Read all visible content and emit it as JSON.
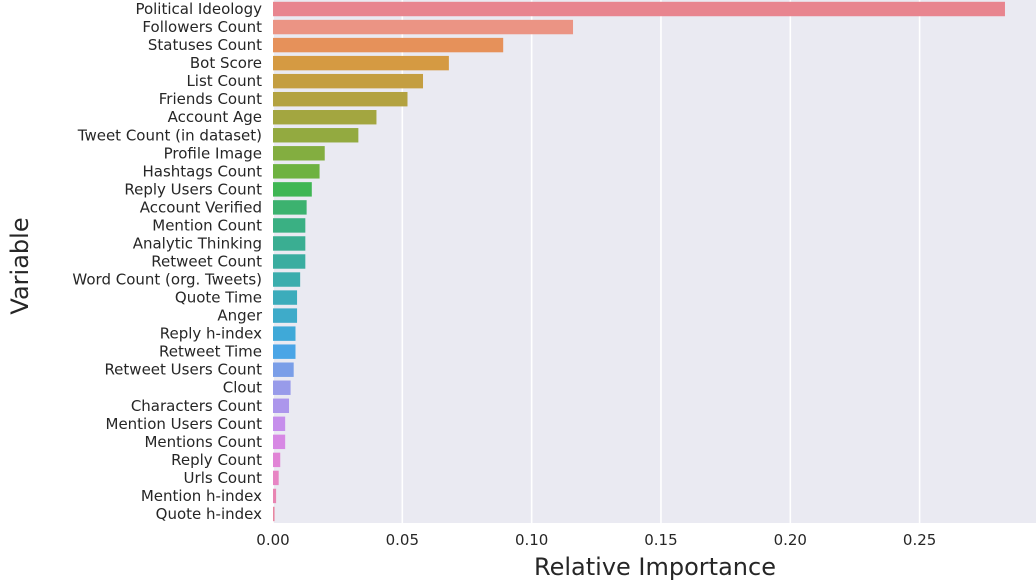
{
  "chart_data": {
    "type": "bar",
    "orientation": "horizontal",
    "xlabel": "Relative Importance",
    "ylabel": "Variable",
    "xlim": [
      0,
      0.295
    ],
    "xticks": [
      "0.00",
      "0.05",
      "0.10",
      "0.15",
      "0.20",
      "0.25"
    ],
    "grid": true,
    "categories": [
      "Political Ideology",
      "Followers Count",
      "Statuses Count",
      "Bot Score",
      "List Count",
      "Friends Count",
      "Account Age",
      "Tweet Count (in dataset)",
      "Profile Image",
      "Hashtags Count",
      "Reply Users Count",
      "Account Verified",
      "Mention Count",
      "Analytic Thinking",
      "Retweet Count",
      "Word Count (org. Tweets)",
      "Quote Time",
      "Anger",
      "Reply h-index",
      "Retweet Time",
      "Retweet Users Count",
      "Clout",
      "Characters Count",
      "Mention Users Count",
      "Mentions Count",
      "Reply Count",
      "Urls Count",
      "Mention h-index",
      "Quote h-index"
    ],
    "values": [
      0.283,
      0.116,
      0.089,
      0.068,
      0.058,
      0.052,
      0.04,
      0.033,
      0.02,
      0.018,
      0.015,
      0.013,
      0.0125,
      0.0125,
      0.0125,
      0.0105,
      0.0093,
      0.0093,
      0.0087,
      0.0087,
      0.008,
      0.0068,
      0.0062,
      0.0047,
      0.0047,
      0.0028,
      0.0022,
      0.0012,
      0.0006
    ],
    "colors": [
      "#e8858f",
      "#eb9484",
      "#e6915a",
      "#d59a42",
      "#c49e41",
      "#b3a240",
      "#a3a640",
      "#93aa40",
      "#83ae40",
      "#6eb240",
      "#3fb654",
      "#3cb26f",
      "#3ab083",
      "#3aae92",
      "#3aada0",
      "#3badad",
      "#3cacbb",
      "#3eabc9",
      "#3fa9d8",
      "#4aa5e6",
      "#7a9ee8",
      "#989bea",
      "#ac96ec",
      "#c68eec",
      "#d788e4",
      "#e184d6",
      "#e785c4",
      "#e885b2",
      "#e886a1"
    ]
  }
}
